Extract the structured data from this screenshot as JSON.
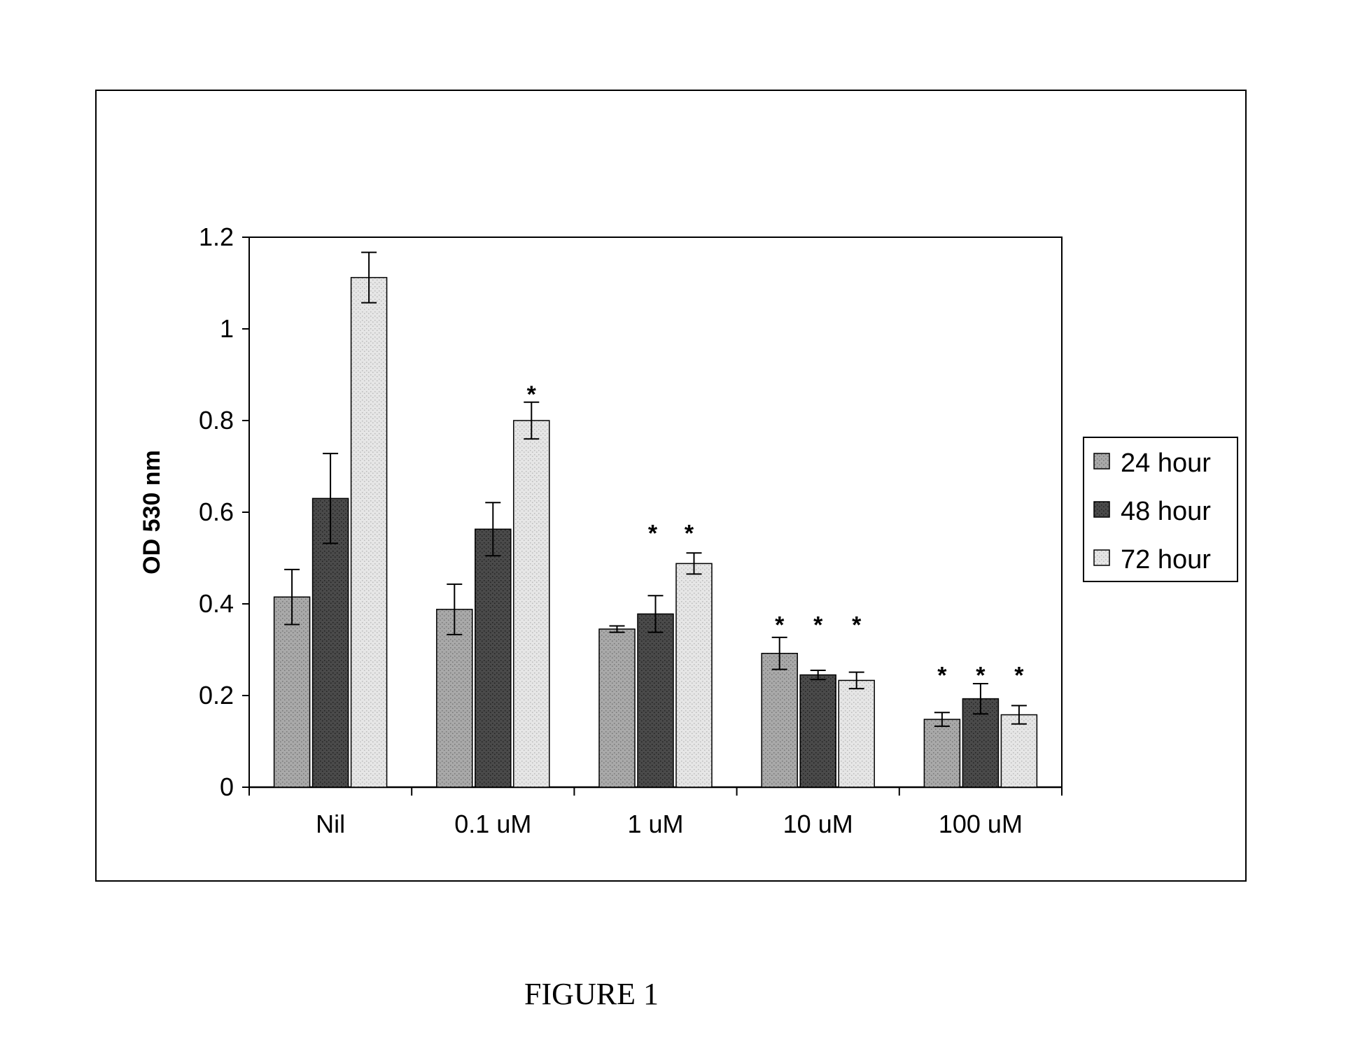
{
  "chart_data": {
    "type": "bar",
    "title": "",
    "xlabel": "",
    "ylabel": "OD 530 nm",
    "ylim": [
      0,
      1.2
    ],
    "yticks": [
      "0",
      "0.2",
      "0.4",
      "0.6",
      "0.8",
      "1",
      "1.2"
    ],
    "categories": [
      "Nil",
      "0.1 uM",
      "1 uM",
      "10 uM",
      "100 uM"
    ],
    "series": [
      {
        "name": "24 hour",
        "color": "#a9a9a9",
        "values": [
          0.415,
          0.388,
          0.345,
          0.292,
          0.148
        ],
        "errors": [
          0.06,
          0.055,
          0.007,
          0.035,
          0.015
        ]
      },
      {
        "name": "48 hour",
        "color": "#4a4a4a",
        "values": [
          0.63,
          0.563,
          0.378,
          0.245,
          0.193
        ],
        "errors": [
          0.098,
          0.058,
          0.04,
          0.01,
          0.033
        ]
      },
      {
        "name": "72 hour",
        "color": "#e6e6e6",
        "values": [
          1.112,
          0.8,
          0.488,
          0.233,
          0.158
        ],
        "errors": [
          0.055,
          0.04,
          0.023,
          0.018,
          0.02
        ]
      }
    ],
    "significance": [
      "",
      "*",
      "*",
      "*",
      "*",
      "*",
      "*",
      "*",
      "*"
    ],
    "legend_position": "right",
    "grid": false
  },
  "caption": "FIGURE 1"
}
